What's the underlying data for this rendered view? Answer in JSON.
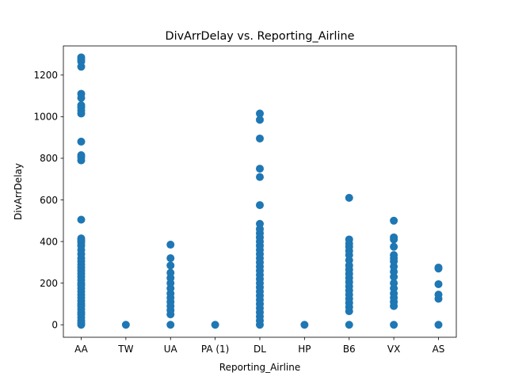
{
  "chart_data": {
    "type": "scatter",
    "title": "DivArrDelay vs. Reporting_Airline",
    "xlabel": "Reporting_Airline",
    "ylabel": "DivArrDelay",
    "categories": [
      "AA",
      "TW",
      "UA",
      "PA (1)",
      "DL",
      "HP",
      "B6",
      "VX",
      "AS"
    ],
    "yticks": [
      0,
      200,
      400,
      600,
      800,
      1000,
      1200
    ],
    "ylim": [
      -60,
      1340
    ],
    "grid": false,
    "point_color": "#1f77b4",
    "series": [
      {
        "points": [
          [
            "AA",
            0
          ],
          [
            "AA",
            10
          ],
          [
            "AA",
            20
          ],
          [
            "AA",
            35
          ],
          [
            "AA",
            50
          ],
          [
            "AA",
            60
          ],
          [
            "AA",
            75
          ],
          [
            "AA",
            90
          ],
          [
            "AA",
            100
          ],
          [
            "AA",
            115
          ],
          [
            "AA",
            130
          ],
          [
            "AA",
            145
          ],
          [
            "AA",
            160
          ],
          [
            "AA",
            175
          ],
          [
            "AA",
            190
          ],
          [
            "AA",
            200
          ],
          [
            "AA",
            215
          ],
          [
            "AA",
            230
          ],
          [
            "AA",
            245
          ],
          [
            "AA",
            260
          ],
          [
            "AA",
            275
          ],
          [
            "AA",
            290
          ],
          [
            "AA",
            305
          ],
          [
            "AA",
            320
          ],
          [
            "AA",
            340
          ],
          [
            "AA",
            360
          ],
          [
            "AA",
            380
          ],
          [
            "AA",
            395
          ],
          [
            "AA",
            405
          ],
          [
            "AA",
            415
          ],
          [
            "AA",
            505
          ],
          [
            "AA",
            790
          ],
          [
            "AA",
            805
          ],
          [
            "AA",
            815
          ],
          [
            "AA",
            880
          ],
          [
            "AA",
            1015
          ],
          [
            "AA",
            1030
          ],
          [
            "AA",
            1045
          ],
          [
            "AA",
            1055
          ],
          [
            "AA",
            1090
          ],
          [
            "AA",
            1110
          ],
          [
            "AA",
            1240
          ],
          [
            "AA",
            1265
          ],
          [
            "AA",
            1275
          ],
          [
            "AA",
            1285
          ],
          [
            "TW",
            0
          ],
          [
            "UA",
            0
          ],
          [
            "UA",
            50
          ],
          [
            "UA",
            70
          ],
          [
            "UA",
            90
          ],
          [
            "UA",
            110
          ],
          [
            "UA",
            130
          ],
          [
            "UA",
            150
          ],
          [
            "UA",
            175
          ],
          [
            "UA",
            200
          ],
          [
            "UA",
            225
          ],
          [
            "UA",
            250
          ],
          [
            "UA",
            285
          ],
          [
            "UA",
            320
          ],
          [
            "UA",
            385
          ],
          [
            "PA (1)",
            0
          ],
          [
            "DL",
            0
          ],
          [
            "DL",
            20
          ],
          [
            "DL",
            40
          ],
          [
            "DL",
            60
          ],
          [
            "DL",
            80
          ],
          [
            "DL",
            100
          ],
          [
            "DL",
            120
          ],
          [
            "DL",
            140
          ],
          [
            "DL",
            160
          ],
          [
            "DL",
            180
          ],
          [
            "DL",
            200
          ],
          [
            "DL",
            220
          ],
          [
            "DL",
            240
          ],
          [
            "DL",
            260
          ],
          [
            "DL",
            280
          ],
          [
            "DL",
            300
          ],
          [
            "DL",
            320
          ],
          [
            "DL",
            340
          ],
          [
            "DL",
            360
          ],
          [
            "DL",
            380
          ],
          [
            "DL",
            400
          ],
          [
            "DL",
            420
          ],
          [
            "DL",
            440
          ],
          [
            "DL",
            460
          ],
          [
            "DL",
            485
          ],
          [
            "DL",
            575
          ],
          [
            "DL",
            710
          ],
          [
            "DL",
            750
          ],
          [
            "DL",
            895
          ],
          [
            "DL",
            985
          ],
          [
            "DL",
            1015
          ],
          [
            "HP",
            0
          ],
          [
            "B6",
            0
          ],
          [
            "B6",
            65
          ],
          [
            "B6",
            85
          ],
          [
            "B6",
            105
          ],
          [
            "B6",
            125
          ],
          [
            "B6",
            145
          ],
          [
            "B6",
            165
          ],
          [
            "B6",
            185
          ],
          [
            "B6",
            205
          ],
          [
            "B6",
            225
          ],
          [
            "B6",
            245
          ],
          [
            "B6",
            265
          ],
          [
            "B6",
            285
          ],
          [
            "B6",
            310
          ],
          [
            "B6",
            335
          ],
          [
            "B6",
            355
          ],
          [
            "B6",
            375
          ],
          [
            "B6",
            390
          ],
          [
            "B6",
            410
          ],
          [
            "B6",
            610
          ],
          [
            "VX",
            0
          ],
          [
            "VX",
            90
          ],
          [
            "VX",
            110
          ],
          [
            "VX",
            130
          ],
          [
            "VX",
            150
          ],
          [
            "VX",
            175
          ],
          [
            "VX",
            200
          ],
          [
            "VX",
            230
          ],
          [
            "VX",
            255
          ],
          [
            "VX",
            280
          ],
          [
            "VX",
            305
          ],
          [
            "VX",
            320
          ],
          [
            "VX",
            335
          ],
          [
            "VX",
            375
          ],
          [
            "VX",
            410
          ],
          [
            "VX",
            420
          ],
          [
            "VX",
            500
          ],
          [
            "AS",
            0
          ],
          [
            "AS",
            125
          ],
          [
            "AS",
            145
          ],
          [
            "AS",
            195
          ],
          [
            "AS",
            270
          ],
          [
            "AS",
            275
          ]
        ]
      }
    ]
  }
}
